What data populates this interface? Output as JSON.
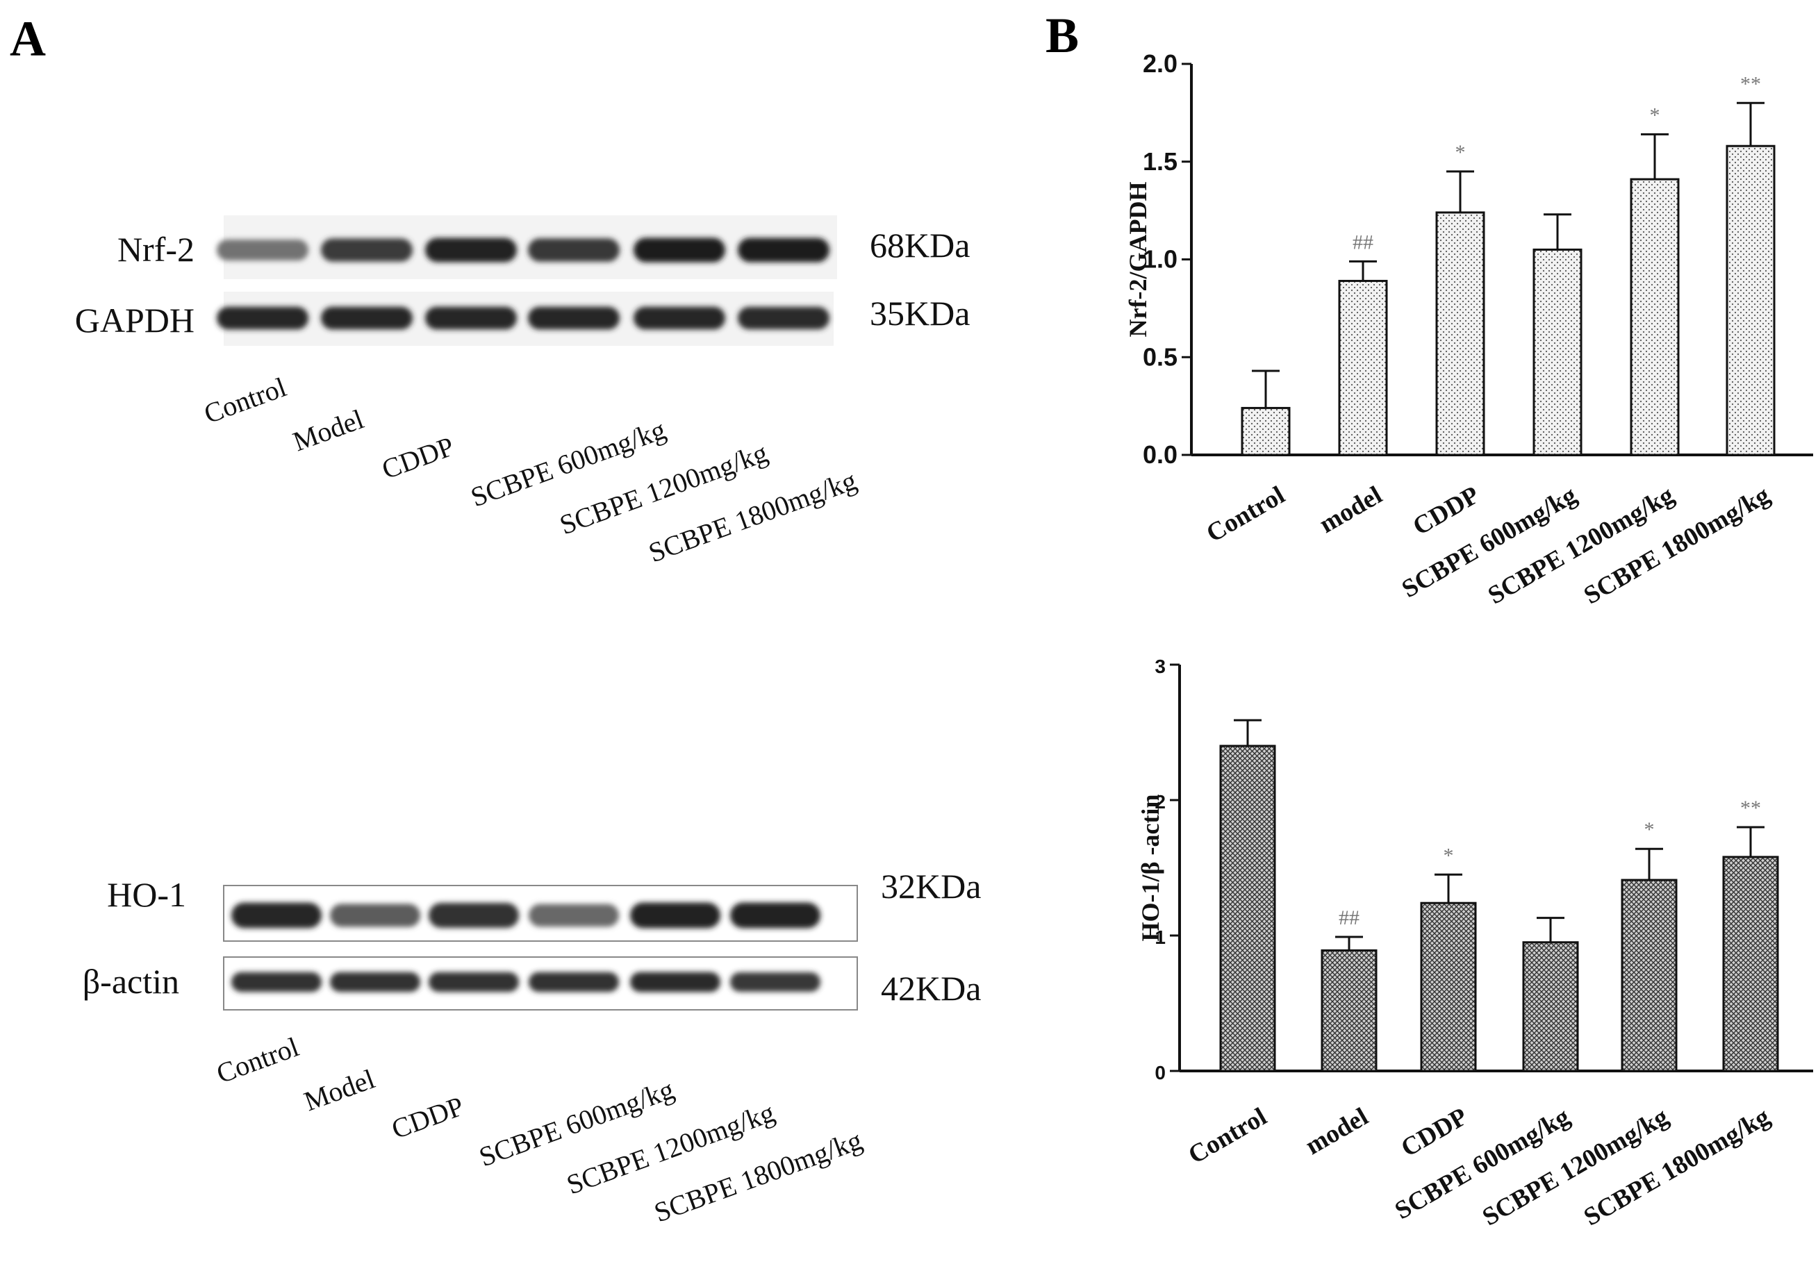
{
  "panels": {
    "a": "A",
    "b": "B"
  },
  "blots": [
    {
      "rows": [
        {
          "protein": "Nrf-2",
          "size": "68KDa",
          "intensities": [
            0.55,
            0.8,
            0.92,
            0.82,
            0.95,
            0.93
          ]
        },
        {
          "protein": "GAPDH",
          "size": "35KDa",
          "intensities": [
            0.9,
            0.9,
            0.9,
            0.9,
            0.9,
            0.88
          ]
        }
      ],
      "lanes": [
        "Control",
        "Model",
        "CDDP",
        "SCBPE 600mg/kg",
        "SCBPE 1200mg/kg",
        "SCBPE 1800mg/kg"
      ]
    },
    {
      "rows": [
        {
          "protein": "HO-1",
          "size": "32KDa",
          "intensities": [
            0.9,
            0.65,
            0.85,
            0.6,
            0.92,
            0.92
          ]
        },
        {
          "protein": "β-actin",
          "size": "42KDa",
          "intensities": [
            0.85,
            0.85,
            0.85,
            0.85,
            0.88,
            0.82
          ]
        }
      ],
      "lanes": [
        "Control",
        "Model",
        "CDDP",
        "SCBPE 600mg/kg",
        "SCBPE 1200mg/kg",
        "SCBPE 1800mg/kg"
      ]
    }
  ],
  "chart_data": [
    {
      "type": "bar",
      "categories": [
        "Control",
        "model",
        "CDDP",
        "SCBPE 600mg/kg",
        "SCBPE 1200mg/kg",
        "SCBPE 1800mg/kg"
      ],
      "values": [
        0.24,
        0.89,
        1.24,
        1.05,
        1.41,
        1.58
      ],
      "errors": [
        0.19,
        0.1,
        0.21,
        0.18,
        0.23,
        0.22
      ],
      "annotations": [
        "",
        "##",
        "*",
        "",
        "*",
        "**"
      ],
      "ylabel": "Nrf-2/GAPDH",
      "ylim": [
        0,
        2
      ],
      "yticks": [
        "0.0",
        "0.5",
        "1.0",
        "1.5",
        "2.0"
      ],
      "pattern": "dots",
      "grid": false
    },
    {
      "type": "bar",
      "categories": [
        "Control",
        "model",
        "CDDP",
        "SCBPE 600mg/kg",
        "SCBPE 1200mg/kg",
        "SCBPE 1800mg/kg"
      ],
      "values": [
        2.4,
        0.89,
        1.24,
        0.95,
        1.41,
        1.58
      ],
      "errors": [
        0.19,
        0.1,
        0.21,
        0.18,
        0.23,
        0.22
      ],
      "annotations": [
        "",
        "##",
        "*",
        "",
        "*",
        "**"
      ],
      "ylabel": "HO-1/β -actin",
      "ylim": [
        0,
        3
      ],
      "yticks": [
        "0",
        "1",
        "2",
        "3"
      ],
      "pattern": "crosshatch",
      "grid": false
    }
  ]
}
